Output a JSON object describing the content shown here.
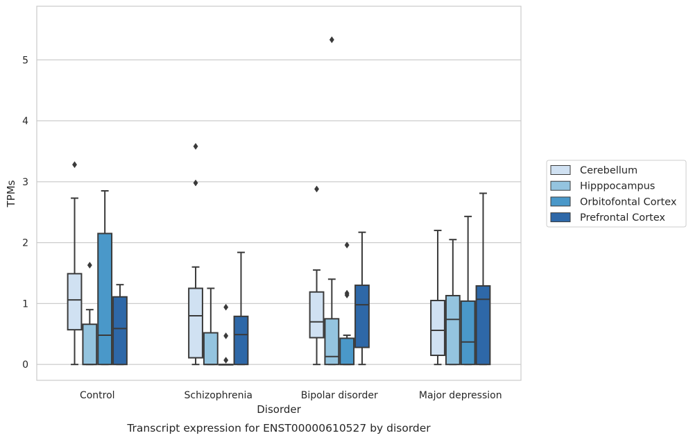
{
  "chart_data": {
    "type": "boxplot",
    "caption": "Transcript expression for ENST00000610527 by disorder",
    "xlabel": "Disorder",
    "ylabel": "TPMs",
    "ylim": [
      -0.26,
      5.88
    ],
    "yticks": [
      0,
      1,
      2,
      3,
      4,
      5
    ],
    "grid": "horizontal",
    "legend_position": "right",
    "categories": [
      "Control",
      "Schizophrenia",
      "Bipolar disorder",
      "Major depression"
    ],
    "series": [
      {
        "name": "Cerebellum",
        "color": "#d0e1f2",
        "boxes": [
          {
            "whislo": 0.0,
            "q1": 0.57,
            "med": 1.06,
            "q3": 1.49,
            "whishi": 2.73,
            "fliers": [
              3.28
            ]
          },
          {
            "whislo": 0.0,
            "q1": 0.11,
            "med": 0.8,
            "q3": 1.25,
            "whishi": 1.6,
            "fliers": [
              2.98,
              3.58
            ]
          },
          {
            "whislo": 0.0,
            "q1": 0.44,
            "med": 0.7,
            "q3": 1.19,
            "whishi": 1.55,
            "fliers": [
              2.88
            ]
          },
          {
            "whislo": 0.0,
            "q1": 0.15,
            "med": 0.56,
            "q3": 1.05,
            "whishi": 2.2,
            "fliers": []
          }
        ]
      },
      {
        "name": "Hipppocampus",
        "color": "#94c4df",
        "boxes": [
          {
            "whislo": 0.0,
            "q1": 0.0,
            "med": 0.0,
            "q3": 0.66,
            "whishi": 0.9,
            "fliers": [
              1.63
            ]
          },
          {
            "whislo": 0.0,
            "q1": 0.0,
            "med": 0.0,
            "q3": 0.52,
            "whishi": 1.25,
            "fliers": []
          },
          {
            "whislo": 0.0,
            "q1": 0.0,
            "med": 0.13,
            "q3": 0.75,
            "whishi": 1.4,
            "fliers": [
              5.33
            ]
          },
          {
            "whislo": 0.0,
            "q1": 0.0,
            "med": 0.74,
            "q3": 1.13,
            "whishi": 2.05,
            "fliers": []
          }
        ]
      },
      {
        "name": "Orbitofontal Cortex",
        "color": "#4a98c9",
        "boxes": [
          {
            "whislo": 0.0,
            "q1": 0.0,
            "med": 0.48,
            "q3": 2.15,
            "whishi": 2.85,
            "fliers": []
          },
          {
            "whislo": 0.0,
            "q1": 0.0,
            "med": 0.0,
            "q3": 0.0,
            "whishi": 0.0,
            "fliers": [
              0.07,
              0.47,
              0.94
            ]
          },
          {
            "whislo": 0.0,
            "q1": 0.0,
            "med": 0.0,
            "q3": 0.43,
            "whishi": 0.48,
            "fliers": [
              1.14,
              1.17,
              1.96
            ]
          },
          {
            "whislo": 0.0,
            "q1": 0.0,
            "med": 0.37,
            "q3": 1.04,
            "whishi": 2.43,
            "fliers": []
          }
        ]
      },
      {
        "name": "Prefrontal Cortex",
        "color": "#2e68a8",
        "boxes": [
          {
            "whislo": 0.0,
            "q1": 0.0,
            "med": 0.59,
            "q3": 1.11,
            "whishi": 1.31,
            "fliers": []
          },
          {
            "whislo": 0.0,
            "q1": 0.0,
            "med": 0.49,
            "q3": 0.79,
            "whishi": 1.84,
            "fliers": []
          },
          {
            "whislo": 0.0,
            "q1": 0.28,
            "med": 0.98,
            "q3": 1.3,
            "whishi": 2.17,
            "fliers": []
          },
          {
            "whislo": 0.0,
            "q1": 0.0,
            "med": 1.07,
            "q3": 1.29,
            "whishi": 2.81,
            "fliers": []
          }
        ]
      }
    ]
  }
}
